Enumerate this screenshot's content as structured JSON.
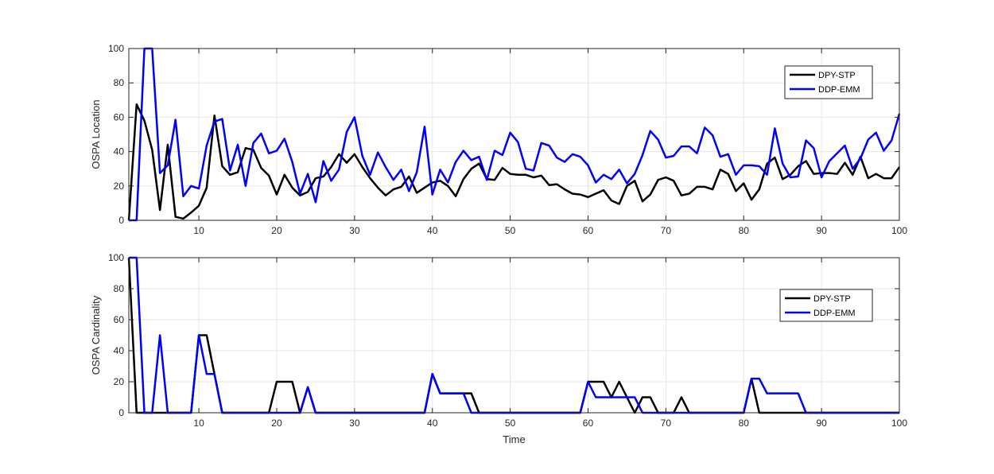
{
  "chart_data": [
    {
      "type": "line",
      "title": "",
      "xlabel": "",
      "ylabel": "OSPA Location",
      "xlim": [
        1,
        100
      ],
      "ylim": [
        0,
        100
      ],
      "xticks": [
        10,
        20,
        30,
        40,
        50,
        60,
        70,
        80,
        90,
        100
      ],
      "yticks": [
        0,
        20,
        40,
        60,
        80,
        100
      ],
      "grid": true,
      "legend": "top-right",
      "series": [
        {
          "name": "DPY-STP",
          "color": "#000000",
          "values": [
            0,
            67.5,
            58,
            41,
            6,
            44,
            2,
            1,
            4.5,
            8.5,
            19,
            61,
            31.5,
            26.5,
            28,
            42,
            41,
            30.5,
            26,
            15,
            26.5,
            19,
            14.5,
            16.5,
            24.5,
            25.5,
            31,
            38.5,
            33.5,
            38.5,
            31,
            24.5,
            19,
            14.5,
            18,
            19.5,
            25.5,
            16,
            19,
            22,
            23,
            20,
            14,
            24,
            30,
            33,
            24,
            23.5,
            30.5,
            27,
            26.5,
            26.5,
            25,
            26,
            20.5,
            21,
            18,
            15.5,
            15,
            13.5,
            15.5,
            17.5,
            11.5,
            9.5,
            20,
            23,
            11,
            15,
            23.5,
            25,
            23,
            14.5,
            15.5,
            19.5,
            19.5,
            18,
            29.5,
            27,
            17,
            21.5,
            12,
            18,
            33,
            36.5,
            24,
            26.5,
            31.5,
            34.5,
            27,
            27.5,
            27.5,
            27,
            33.5,
            26.5,
            37,
            24.5,
            27,
            24.5,
            24.5,
            31
          ]
        },
        {
          "name": "DDP-EMM",
          "color": "#0000ff",
          "values": [
            0,
            0,
            100,
            100,
            27.5,
            32,
            58.5,
            14,
            20,
            18.5,
            43.5,
            57.5,
            59,
            29,
            44,
            20,
            45,
            50.5,
            39,
            40.5,
            47.5,
            34,
            15.5,
            27,
            10.5,
            34.5,
            23,
            29.5,
            51.5,
            60,
            37.5,
            26.5,
            39.5,
            31,
            23.5,
            29.5,
            17,
            28,
            54.5,
            15,
            29.5,
            22,
            34,
            40.5,
            35,
            37,
            23.5,
            40.5,
            38,
            51,
            45.5,
            30,
            29,
            45,
            43.5,
            36.5,
            34,
            38.5,
            37,
            32,
            22,
            26.5,
            24,
            29.5,
            21.5,
            27,
            38,
            52,
            47,
            36.5,
            37.5,
            43,
            43,
            39,
            54,
            49.5,
            37,
            38.5,
            26.5,
            32,
            32,
            31.5,
            26.5,
            53.5,
            33,
            25,
            25.5,
            46.5,
            42,
            25,
            34.5,
            39,
            43.5,
            30,
            36,
            47,
            51,
            40.5,
            46.5,
            62
          ]
        }
      ]
    },
    {
      "type": "line",
      "title": "",
      "xlabel": "Time",
      "ylabel": "OSPA Cardinality",
      "xlim": [
        1,
        100
      ],
      "ylim": [
        0,
        100
      ],
      "xticks": [
        10,
        20,
        30,
        40,
        50,
        60,
        70,
        80,
        90,
        100
      ],
      "yticks": [
        0,
        20,
        40,
        60,
        80,
        100
      ],
      "grid": true,
      "legend": "top-right",
      "series": [
        {
          "name": "DPY-STP",
          "color": "#000000",
          "values": [
            100,
            0,
            0,
            0,
            0,
            0,
            0,
            0,
            0,
            50,
            50,
            25,
            0,
            0,
            0,
            0,
            0,
            0,
            0,
            20,
            20,
            20,
            0,
            16.5,
            0,
            0,
            0,
            0,
            0,
            0,
            0,
            0,
            0,
            0,
            0,
            0,
            0,
            0,
            0,
            25,
            12.5,
            12.5,
            12.5,
            12.5,
            12.5,
            0,
            0,
            0,
            0,
            0,
            0,
            0,
            0,
            0,
            0,
            0,
            0,
            0,
            0,
            20,
            20,
            20,
            10,
            20,
            10,
            0,
            10,
            10,
            0,
            0,
            0,
            10,
            0,
            0,
            0,
            0,
            0,
            0,
            0,
            0,
            22,
            0,
            0,
            0,
            0,
            0,
            0,
            0,
            0,
            0,
            0,
            0,
            0,
            0,
            0,
            0,
            0,
            0,
            0,
            0
          ]
        },
        {
          "name": "DDP-EMM",
          "color": "#0000ff",
          "values": [
            100,
            100,
            0,
            0,
            50,
            0,
            0,
            0,
            0,
            50,
            25,
            25,
            0,
            0,
            0,
            0,
            0,
            0,
            0,
            0,
            0,
            0,
            0,
            16.5,
            0,
            0,
            0,
            0,
            0,
            0,
            0,
            0,
            0,
            0,
            0,
            0,
            0,
            0,
            0,
            25,
            12.5,
            12.5,
            12.5,
            12.5,
            0,
            0,
            0,
            0,
            0,
            0,
            0,
            0,
            0,
            0,
            0,
            0,
            0,
            0,
            0,
            20,
            10,
            10,
            10,
            10,
            10,
            10,
            0,
            0,
            0,
            0,
            0,
            0,
            0,
            0,
            0,
            0,
            0,
            0,
            0,
            0,
            22,
            22,
            12.5,
            12.5,
            12.5,
            12.5,
            12.5,
            0,
            0,
            0,
            0,
            0,
            0,
            0,
            0,
            0,
            0,
            0,
            0,
            0
          ]
        }
      ]
    }
  ]
}
